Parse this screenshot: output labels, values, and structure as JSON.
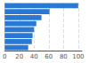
{
  "chart_data": {
    "type": "bar",
    "orientation": "horizontal",
    "categories": [
      null,
      null,
      null,
      null,
      null,
      null,
      null,
      null
    ],
    "values": [
      100,
      61,
      50,
      43,
      40,
      38,
      37,
      32
    ],
    "color": "#2979d4",
    "xlim": [
      0,
      105
    ],
    "xticks": [
      0,
      20,
      40,
      60,
      80,
      100
    ],
    "grid": true,
    "tick_labels": "x"
  }
}
